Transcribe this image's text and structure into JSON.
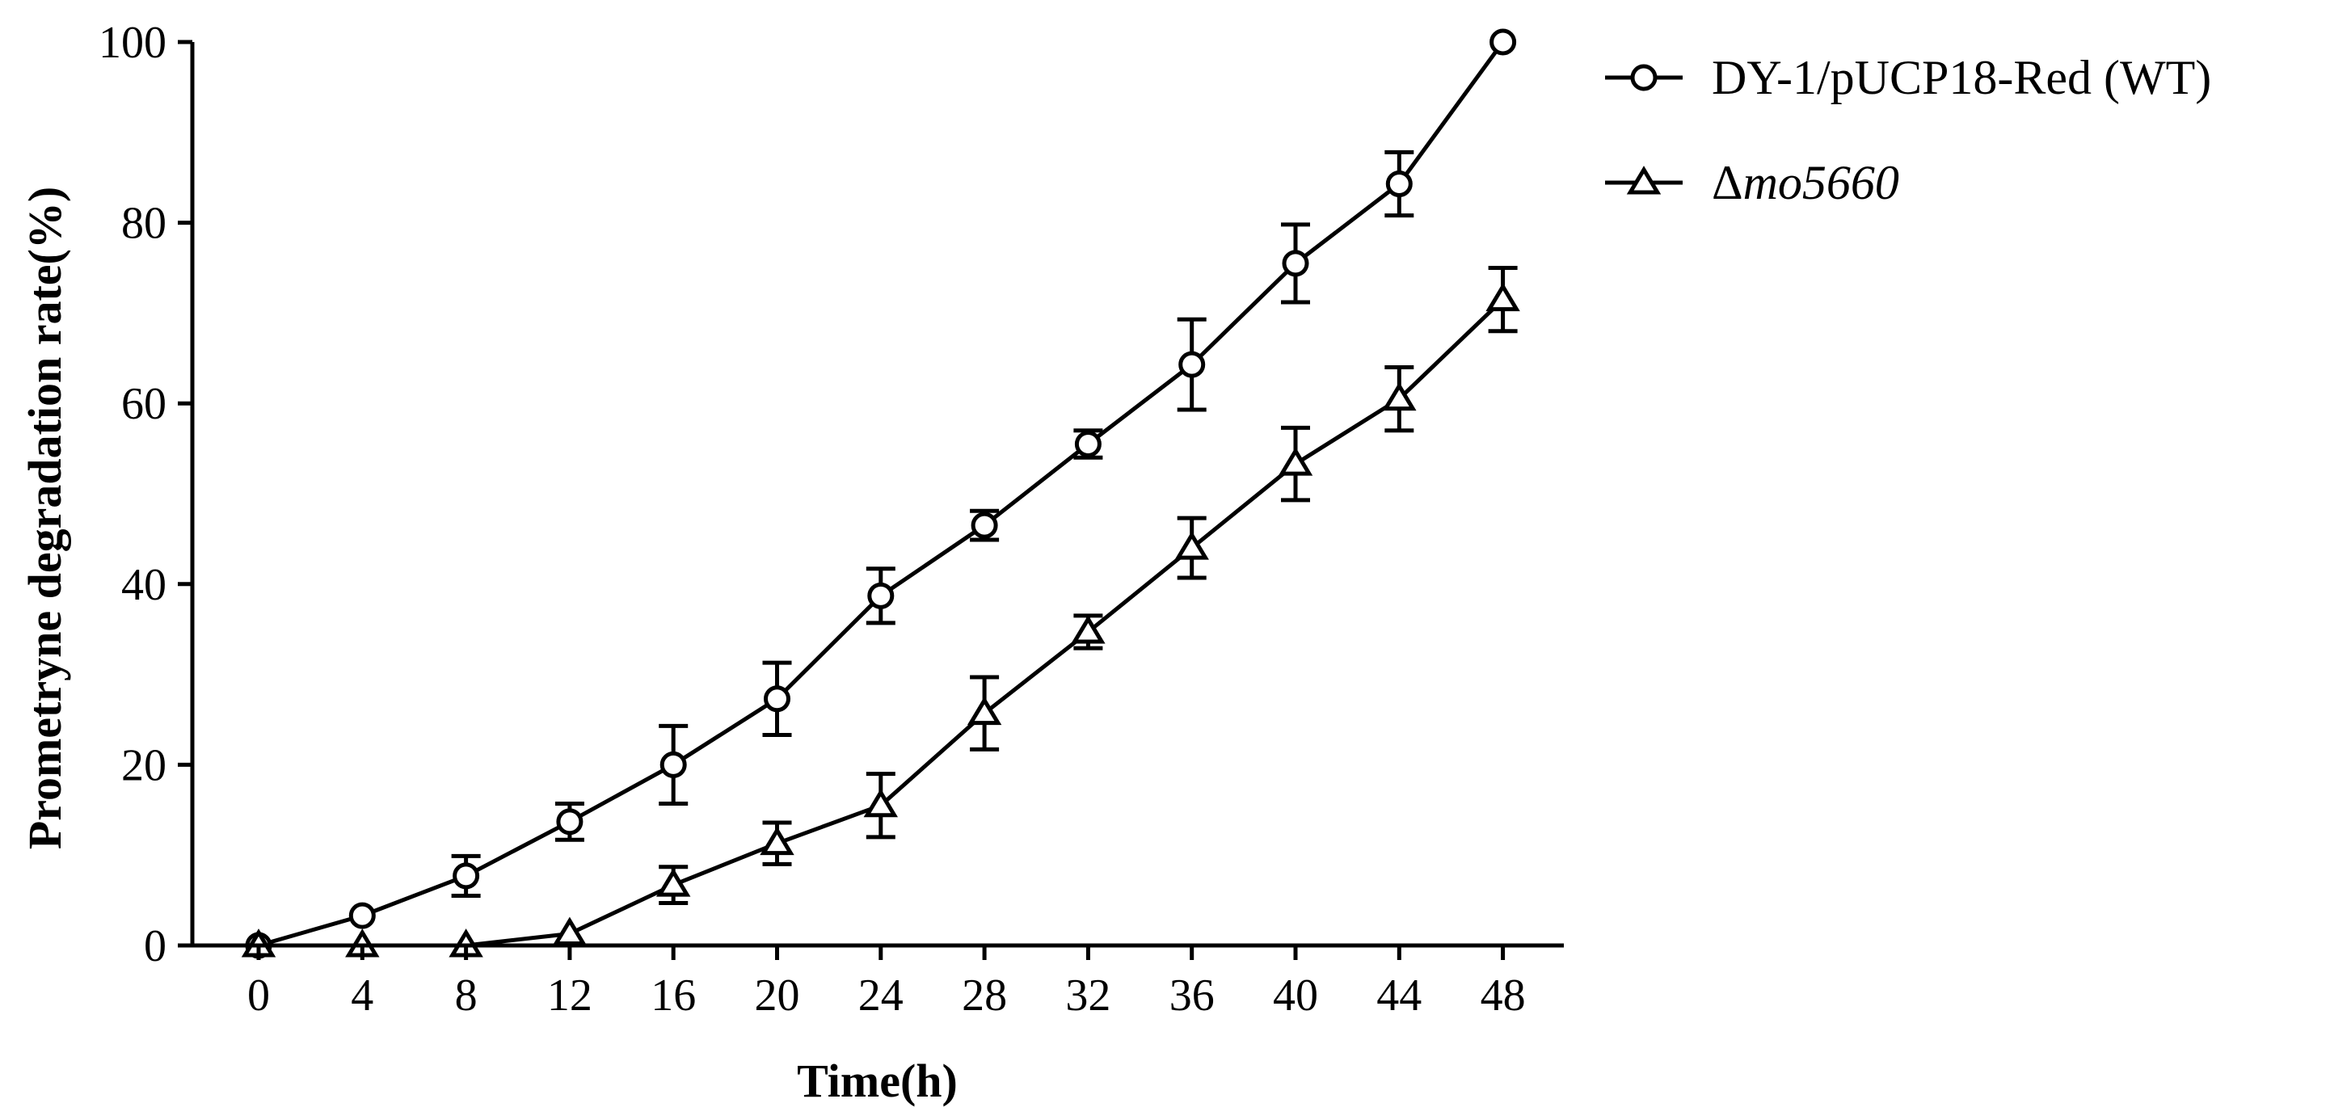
{
  "chart_data": {
    "type": "line",
    "title": "",
    "xlabel": "Time(h)",
    "ylabel": "Prometryne degradation rate(%)",
    "xlim": [
      0,
      48
    ],
    "ylim": [
      0,
      100
    ],
    "x_ticks": [
      0,
      4,
      8,
      12,
      16,
      20,
      24,
      28,
      32,
      36,
      40,
      44,
      48
    ],
    "y_ticks": [
      0,
      20,
      40,
      60,
      80,
      100
    ],
    "grid": false,
    "legend_position": "top-right, outside plot area",
    "x": [
      0,
      4,
      8,
      12,
      16,
      20,
      24,
      28,
      32,
      36,
      40,
      44,
      48
    ],
    "series": [
      {
        "name": "DY-1/pUCP18-Red (WT)",
        "marker": "circle",
        "color": "#000000",
        "values": [
          0,
          3.3,
          7.7,
          13.7,
          20.0,
          27.3,
          38.7,
          46.5,
          55.5,
          64.3,
          75.5,
          84.3,
          100.0
        ],
        "errors": [
          0,
          0,
          2.2,
          2.0,
          4.3,
          4.0,
          3.0,
          1.6,
          1.5,
          5.0,
          4.3,
          3.5,
          0
        ]
      },
      {
        "name": "Δmo5660",
        "legend_prefix": "Δ",
        "legend_italic": "mo5660",
        "marker": "triangle",
        "color": "#000000",
        "values": [
          0,
          0,
          0,
          1.3,
          6.7,
          11.3,
          15.5,
          25.7,
          34.7,
          44.0,
          53.3,
          60.5,
          71.5
        ],
        "errors": [
          0,
          0,
          0,
          0,
          2.0,
          2.3,
          3.5,
          4.0,
          1.8,
          3.3,
          4.0,
          3.5,
          3.5
        ]
      }
    ]
  }
}
